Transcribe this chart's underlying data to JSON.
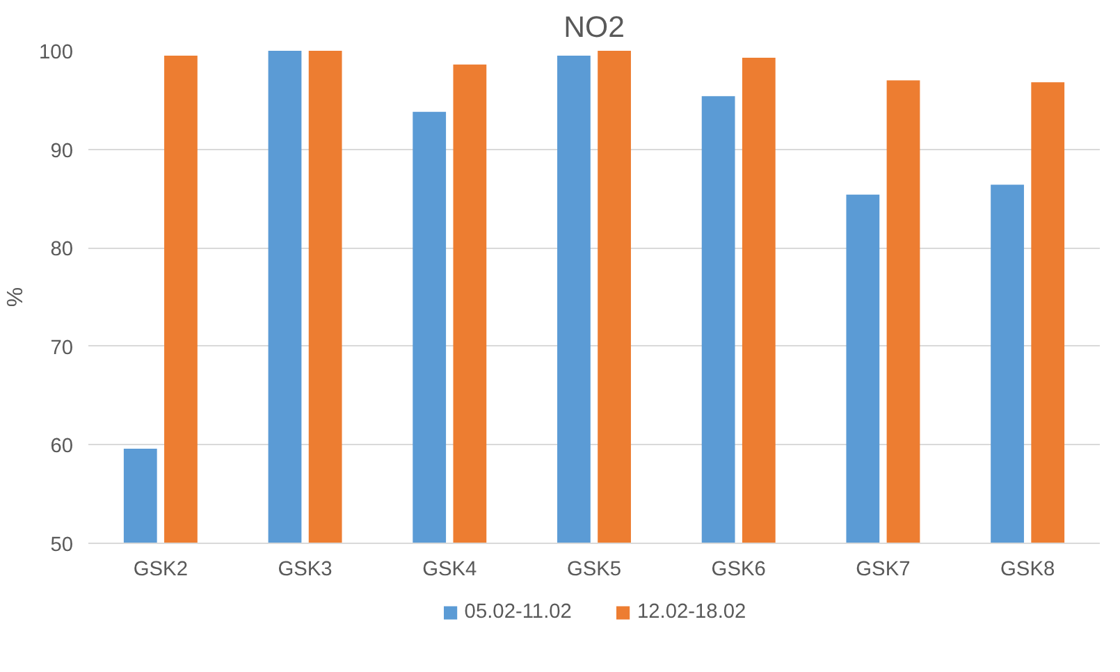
{
  "chart_data": {
    "type": "bar",
    "title": "NO2",
    "ylabel": "%",
    "categories": [
      "GSK2",
      "GSK3",
      "GSK4",
      "GSK5",
      "GSK6",
      "GSK7",
      "GSK8"
    ],
    "series": [
      {
        "name": "05.02-11.02",
        "color": "#5b9bd5",
        "values": [
          59.6,
          100,
          93.8,
          99.5,
          95.4,
          85.4,
          86.4
        ]
      },
      {
        "name": "12.02-18.02",
        "color": "#ed7d31",
        "values": [
          99.5,
          100,
          98.6,
          100,
          99.3,
          97.0,
          96.8
        ]
      }
    ],
    "ylim": [
      50,
      100
    ],
    "yticks": [
      50,
      60,
      70,
      80,
      90,
      100
    ],
    "grid": "y",
    "legend": "bottom"
  }
}
